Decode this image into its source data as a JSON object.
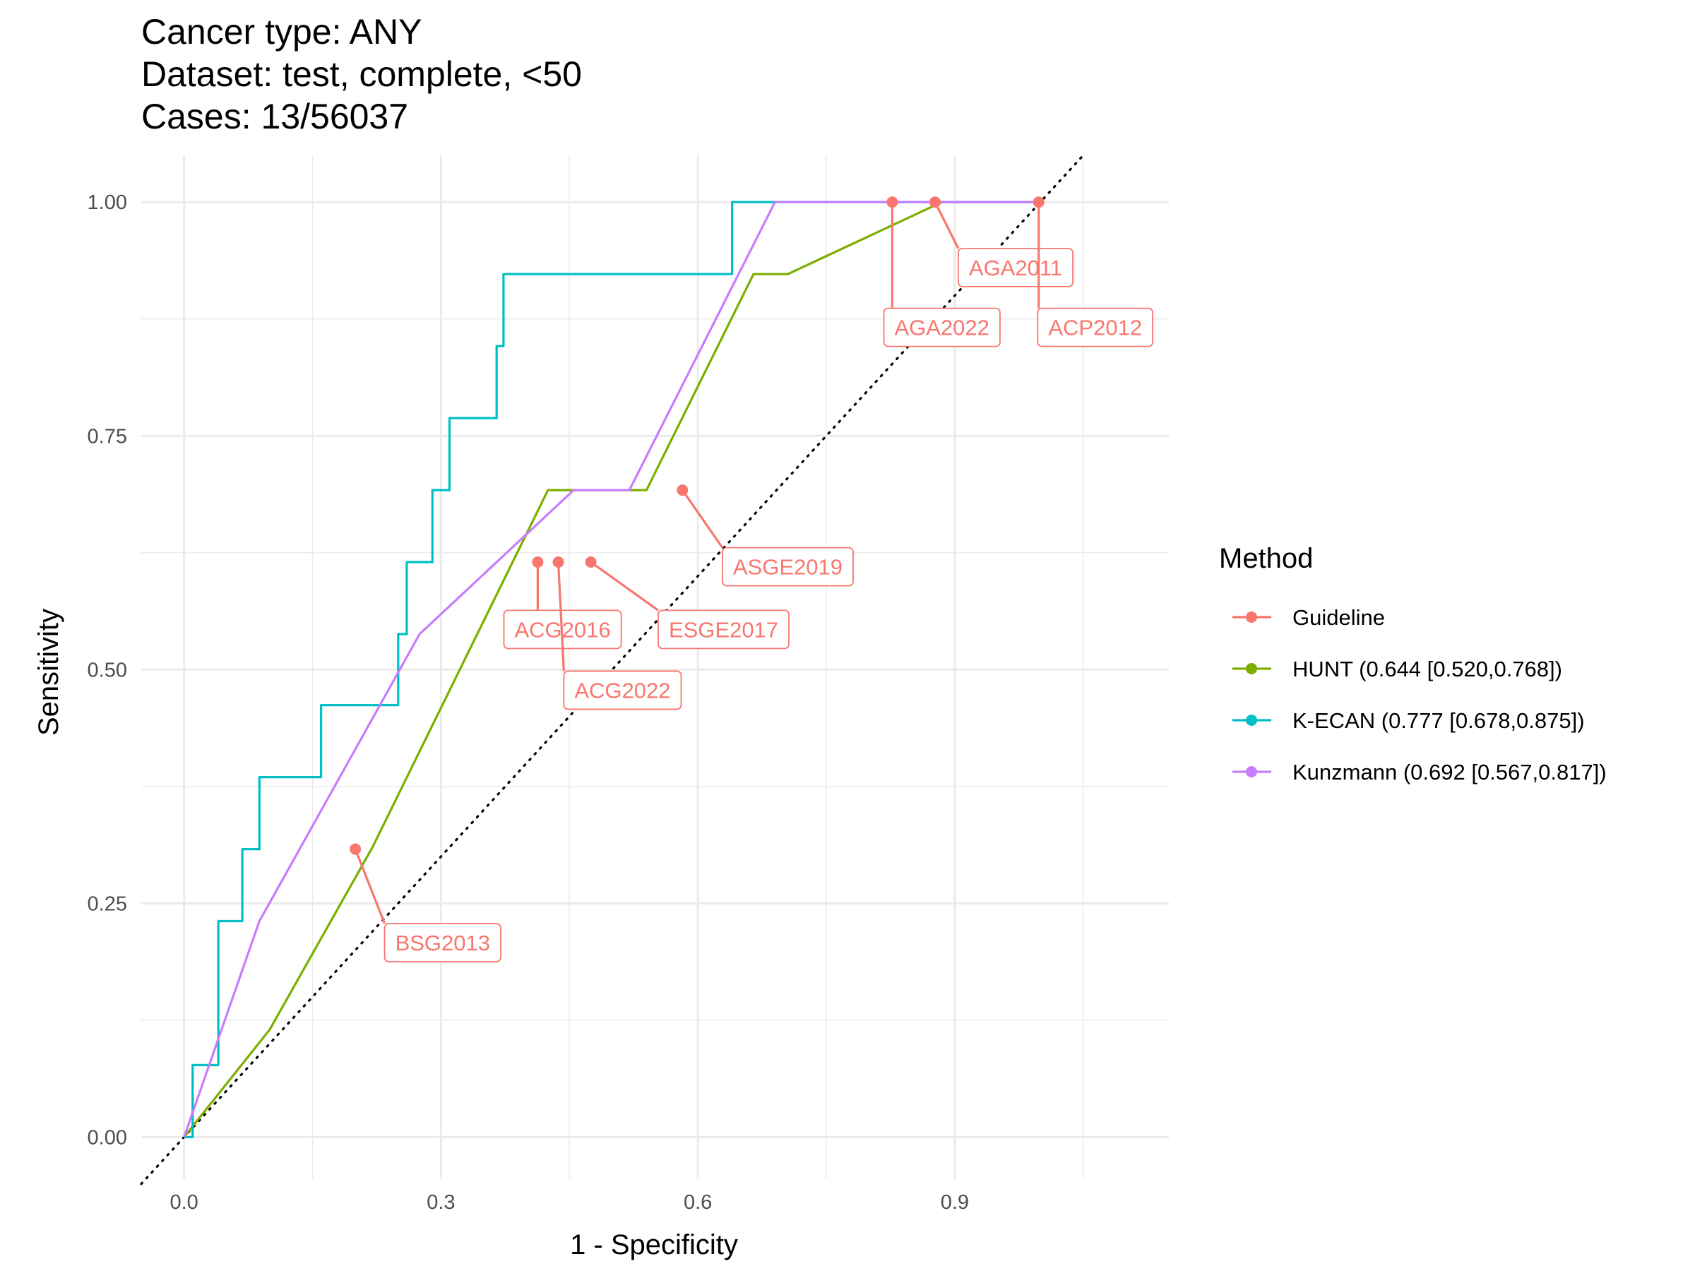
{
  "chart_data": {
    "type": "line",
    "title": [
      "Cancer type: ANY",
      "Dataset: test, complete, <50",
      "Cases: 13/56037"
    ],
    "xlabel": "1 - Specificity",
    "ylabel": "Sensitivity",
    "xlim": [
      -0.05,
      1.15
    ],
    "ylim": [
      -0.045,
      1.05
    ],
    "x_ticks": [
      0.0,
      0.3,
      0.6,
      0.9
    ],
    "x_tick_labels": [
      "0.0",
      "0.3",
      "0.6",
      "0.9"
    ],
    "x_minor": [
      0.15,
      0.45,
      0.75,
      1.05
    ],
    "y_ticks": [
      0.0,
      0.25,
      0.5,
      0.75,
      1.0
    ],
    "y_tick_labels": [
      "0.00",
      "0.25",
      "0.50",
      "0.75",
      "1.00"
    ],
    "y_minor": [
      0.125,
      0.375,
      0.625,
      0.875
    ],
    "grid": true,
    "reference_line": {
      "style": "dotted",
      "from": [
        -0.05,
        -0.05
      ],
      "to": [
        1.05,
        1.05
      ]
    },
    "legend": {
      "title": "Method",
      "position": "right",
      "entries": [
        {
          "label": "Guideline",
          "color": "#F8766D"
        },
        {
          "label": "HUNT (0.644 [0.520,0.768])",
          "color": "#7CAE00"
        },
        {
          "label": "K-ECAN (0.777 [0.678,0.875])",
          "color": "#00BFC4"
        },
        {
          "label": "Kunzmann (0.692 [0.567,0.817])",
          "color": "#C77CFF"
        }
      ]
    },
    "series": [
      {
        "color": "#7CAE00",
        "style": "line",
        "points": [
          [
            0.0,
            0.0
          ],
          [
            0.1,
            0.115
          ],
          [
            0.22,
            0.31
          ],
          [
            0.425,
            0.692
          ],
          [
            0.54,
            0.692
          ],
          [
            0.665,
            0.923
          ],
          [
            0.705,
            0.923
          ],
          [
            0.885,
            1.0
          ],
          [
            1.0,
            1.0
          ]
        ]
      },
      {
        "color": "#00BFC4",
        "style": "step",
        "points": [
          [
            0.0,
            0.0
          ],
          [
            0.01,
            0.0
          ],
          [
            0.01,
            0.077
          ],
          [
            0.04,
            0.077
          ],
          [
            0.04,
            0.231
          ],
          [
            0.068,
            0.231
          ],
          [
            0.068,
            0.308
          ],
          [
            0.088,
            0.308
          ],
          [
            0.088,
            0.385
          ],
          [
            0.16,
            0.385
          ],
          [
            0.16,
            0.462
          ],
          [
            0.25,
            0.462
          ],
          [
            0.25,
            0.538
          ],
          [
            0.26,
            0.538
          ],
          [
            0.26,
            0.615
          ],
          [
            0.29,
            0.615
          ],
          [
            0.29,
            0.692
          ],
          [
            0.31,
            0.692
          ],
          [
            0.31,
            0.769
          ],
          [
            0.365,
            0.769
          ],
          [
            0.365,
            0.846
          ],
          [
            0.373,
            0.846
          ],
          [
            0.373,
            0.923
          ],
          [
            0.64,
            0.923
          ],
          [
            0.64,
            1.0
          ],
          [
            1.0,
            1.0
          ]
        ]
      },
      {
        "color": "#C77CFF",
        "style": "line",
        "points": [
          [
            0.0,
            0.0
          ],
          [
            0.088,
            0.231
          ],
          [
            0.275,
            0.538
          ],
          [
            0.455,
            0.692
          ],
          [
            0.52,
            0.692
          ],
          [
            0.69,
            1.0
          ],
          [
            1.0,
            1.0
          ]
        ]
      }
    ],
    "guideline_points": [
      {
        "label": "BSG2013",
        "x": 0.2,
        "y": 0.308,
        "label_x": 0.302,
        "label_y": 0.208
      },
      {
        "label": "ACG2016",
        "x": 0.413,
        "y": 0.615,
        "label_x": 0.442,
        "label_y": 0.543
      },
      {
        "label": "ESGE2017",
        "x": 0.475,
        "y": 0.615,
        "label_x": 0.63,
        "label_y": 0.543
      },
      {
        "label": "ACG2022",
        "x": 0.437,
        "y": 0.615,
        "label_x": 0.512,
        "label_y": 0.478
      },
      {
        "label": "ASGE2019",
        "x": 0.582,
        "y": 0.692,
        "label_x": 0.705,
        "label_y": 0.61
      },
      {
        "label": "AGA2022",
        "x": 0.827,
        "y": 1.0,
        "label_x": 0.885,
        "label_y": 0.866
      },
      {
        "label": "AGA2011",
        "x": 0.877,
        "y": 1.0,
        "label_x": 0.971,
        "label_y": 0.93
      },
      {
        "label": "ACP2012",
        "x": 0.998,
        "y": 1.0,
        "label_x": 1.064,
        "label_y": 0.866
      }
    ]
  }
}
